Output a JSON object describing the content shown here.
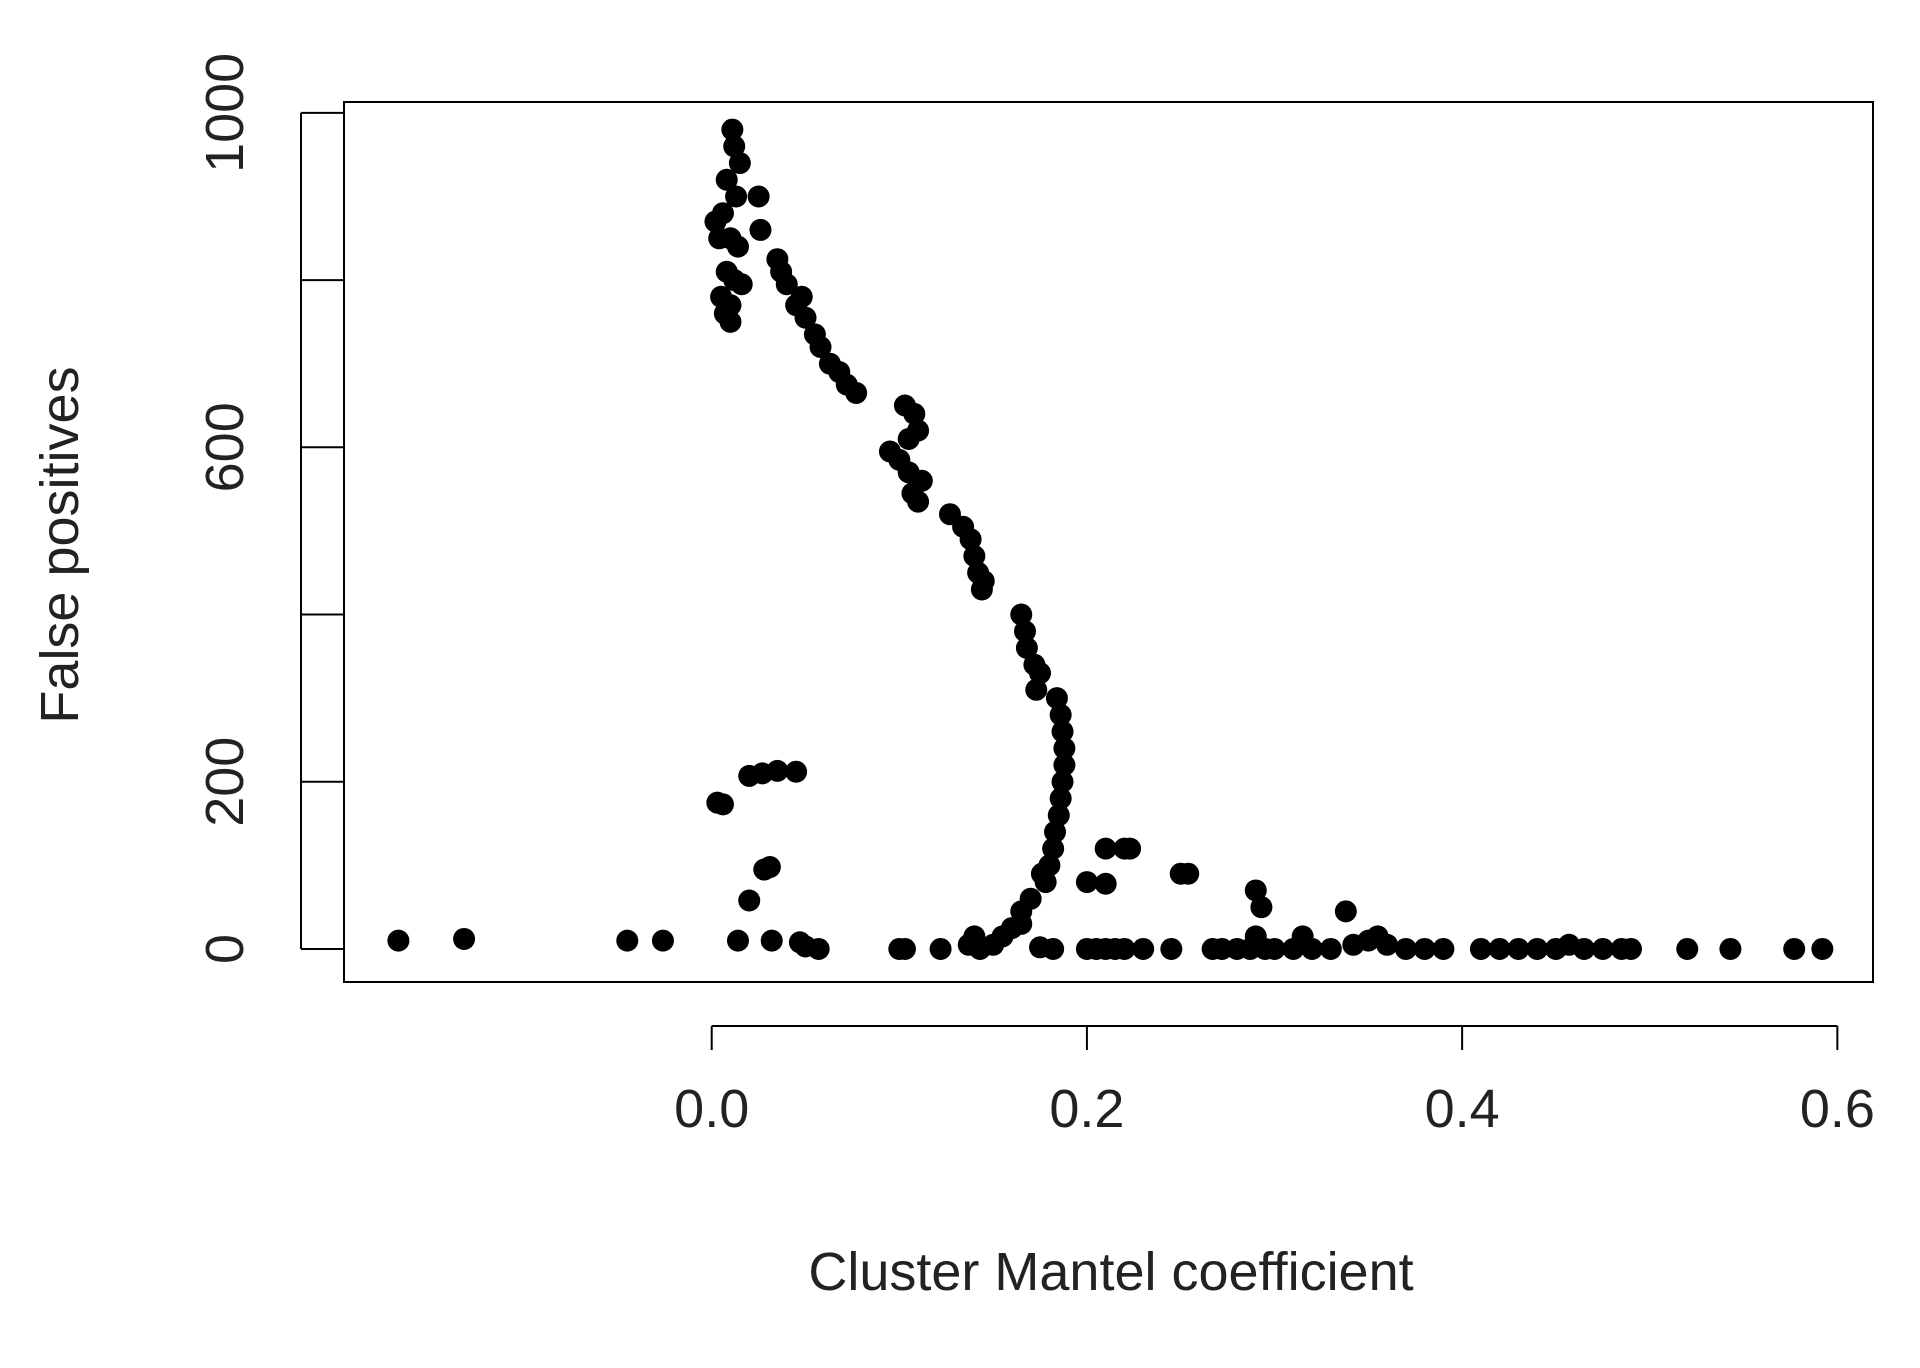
{
  "chart_data": {
    "type": "scatter",
    "x_label": "Cluster Mantel coefficient",
    "y_label": "False positives",
    "xlim": [
      -0.196,
      0.619
    ],
    "ylim": [
      -39.5,
      1013
    ],
    "xticks": [
      {
        "value": 0,
        "label": "0.0"
      },
      0.2,
      0.4,
      0.6
    ],
    "yticks": [
      0,
      200,
      600,
      1000
    ],
    "yticks_unlabeled": [
      400,
      800
    ],
    "color": "#000000",
    "x": [
      -0.167,
      -0.132,
      -0.045,
      -0.026,
      0.014,
      0.032,
      0.047,
      0.05,
      0.057,
      0.1,
      0.103,
      0.122,
      0.137,
      0.14,
      0.143,
      0.15,
      0.155,
      0.16,
      0.165,
      0.175,
      0.182,
      0.2,
      0.205,
      0.21,
      0.215,
      0.22,
      0.23,
      0.245,
      0.267,
      0.272,
      0.28,
      0.287,
      0.29,
      0.295,
      0.3,
      0.31,
      0.315,
      0.32,
      0.33,
      0.338,
      0.342,
      0.35,
      0.355,
      0.36,
      0.37,
      0.38,
      0.39,
      0.41,
      0.42,
      0.43,
      0.44,
      0.45,
      0.457,
      0.465,
      0.475,
      0.485,
      0.49,
      0.52,
      0.543,
      0.577,
      0.592,
      0.003,
      0.006,
      0.02,
      0.027,
      0.035,
      0.045,
      0.028,
      0.031,
      0.02,
      0.29,
      0.293,
      0.21,
      0.22,
      0.223,
      0.254,
      0.25,
      0.2,
      0.21,
      0.178,
      0.17,
      0.165,
      0.184,
      0.186,
      0.187,
      0.188,
      0.188,
      0.187,
      0.186,
      0.185,
      0.183,
      0.182,
      0.18,
      0.176,
      0.165,
      0.167,
      0.168,
      0.172,
      0.175,
      0.173,
      0.127,
      0.134,
      0.138,
      0.14,
      0.142,
      0.145,
      0.144,
      0.103,
      0.108,
      0.11,
      0.105,
      0.095,
      0.1,
      0.105,
      0.112,
      0.107,
      0.11,
      0.077,
      0.072,
      0.068,
      0.063,
      0.058,
      0.055,
      0.05,
      0.045,
      0.048,
      0.04,
      0.037,
      0.035,
      0.026,
      0.025,
      0.011,
      0.012,
      0.015,
      0.008,
      0.013,
      0.006,
      0.002,
      0.004,
      0.01,
      0.014,
      0.008,
      0.012,
      0.016,
      0.005,
      0.01,
      0.007,
      0.01
    ],
    "values": [
      10,
      12,
      10,
      10,
      10,
      10,
      8,
      3,
      0,
      0,
      0,
      0,
      5,
      15,
      0,
      5,
      15,
      25,
      30,
      2,
      0,
      0,
      0,
      0,
      0,
      0,
      0,
      0,
      0,
      0,
      0,
      0,
      15,
      0,
      0,
      0,
      15,
      0,
      0,
      45,
      5,
      10,
      15,
      5,
      0,
      0,
      0,
      0,
      0,
      0,
      0,
      0,
      5,
      0,
      0,
      0,
      0,
      0,
      0,
      0,
      0,
      175,
      173,
      207,
      210,
      213,
      212,
      95,
      98,
      58,
      70,
      50,
      120,
      120,
      120,
      90,
      90,
      80,
      78,
      80,
      60,
      45,
      300,
      280,
      260,
      240,
      220,
      200,
      180,
      160,
      140,
      120,
      100,
      90,
      400,
      380,
      360,
      340,
      330,
      310,
      520,
      505,
      490,
      470,
      450,
      440,
      430,
      650,
      640,
      620,
      610,
      595,
      585,
      570,
      560,
      545,
      535,
      665,
      675,
      690,
      700,
      720,
      735,
      755,
      770,
      780,
      795,
      810,
      825,
      860,
      900,
      980,
      960,
      940,
      920,
      900,
      880,
      870,
      850,
      850,
      840,
      810,
      800,
      795,
      780,
      770,
      760,
      750
    ]
  }
}
